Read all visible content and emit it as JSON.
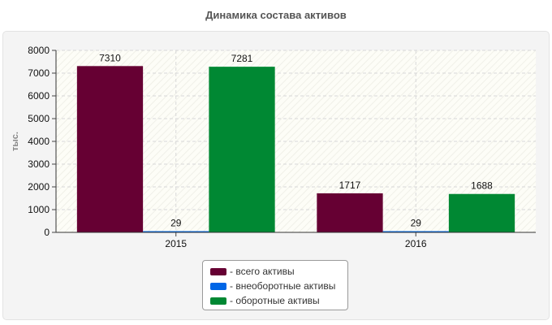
{
  "chart_data": {
    "type": "bar",
    "title": "Динамика состава активов",
    "xlabel": "",
    "ylabel": "тыс.",
    "categories": [
      "2015",
      "2016"
    ],
    "ylim": [
      0,
      8000
    ],
    "yticks": [
      0,
      1000,
      2000,
      3000,
      4000,
      5000,
      6000,
      7000,
      8000
    ],
    "grid": true,
    "legend_position": "bottom-center",
    "series": [
      {
        "name": "- всего активы",
        "color": "#660033",
        "values": [
          7310,
          1717
        ]
      },
      {
        "name": "- внеоборотные активы",
        "color": "#0066e6",
        "values": [
          29,
          29
        ]
      },
      {
        "name": "- оборотные активы",
        "color": "#008833",
        "values": [
          7281,
          1688
        ]
      }
    ]
  }
}
